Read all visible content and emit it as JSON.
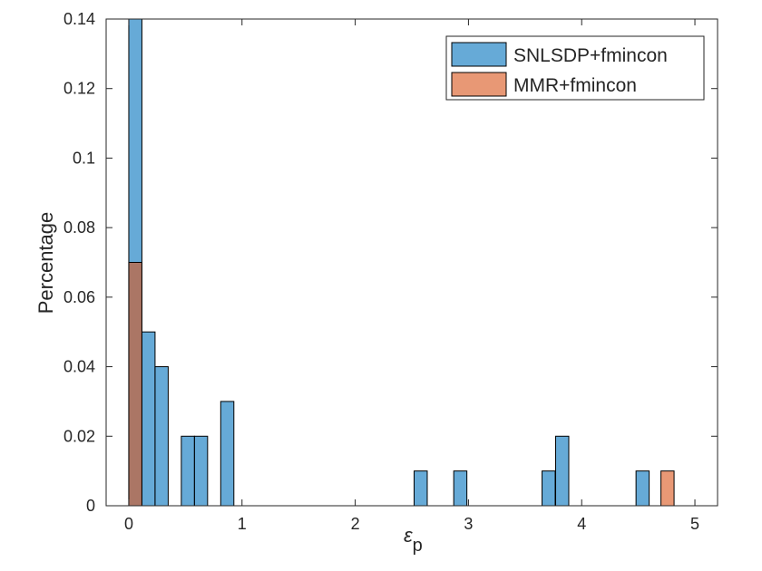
{
  "chart_data": {
    "type": "bar",
    "subtype": "overlaid-histogram",
    "title": "",
    "xlabel": "ε",
    "xlabel_subscript": "p",
    "ylabel": "Percentage",
    "xlim": [
      -0.2,
      5.2
    ],
    "ylim": [
      0,
      0.14
    ],
    "xticks": [
      0,
      1,
      2,
      3,
      4,
      5
    ],
    "xtick_labels": [
      "0",
      "1",
      "2",
      "3",
      "4",
      "5"
    ],
    "yticks": [
      0,
      0.02,
      0.04,
      0.06,
      0.08,
      0.1,
      0.12,
      0.14
    ],
    "ytick_labels": [
      "0",
      "0.02",
      "0.04",
      "0.06",
      "0.08",
      "0.1",
      "0.12",
      "0.14"
    ],
    "grid": false,
    "legend_position": "top-right",
    "bin_width": 0.116,
    "series": [
      {
        "name": "SNLSDP+fmincon",
        "color": "#0072BD",
        "bins": [
          {
            "x": 0.0,
            "value": 0.14
          },
          {
            "x": 0.116,
            "value": 0.05
          },
          {
            "x": 0.232,
            "value": 0.04
          },
          {
            "x": 0.464,
            "value": 0.02
          },
          {
            "x": 0.58,
            "value": 0.02
          },
          {
            "x": 0.812,
            "value": 0.03
          },
          {
            "x": 2.52,
            "value": 0.01
          },
          {
            "x": 2.87,
            "value": 0.01
          },
          {
            "x": 3.65,
            "value": 0.01
          },
          {
            "x": 3.77,
            "value": 0.02
          },
          {
            "x": 4.48,
            "value": 0.01
          }
        ]
      },
      {
        "name": "MMR+fmincon",
        "color": "#D95319",
        "bins": [
          {
            "x": 0.0,
            "value": 0.07
          },
          {
            "x": 4.7,
            "value": 0.01
          }
        ]
      }
    ]
  }
}
